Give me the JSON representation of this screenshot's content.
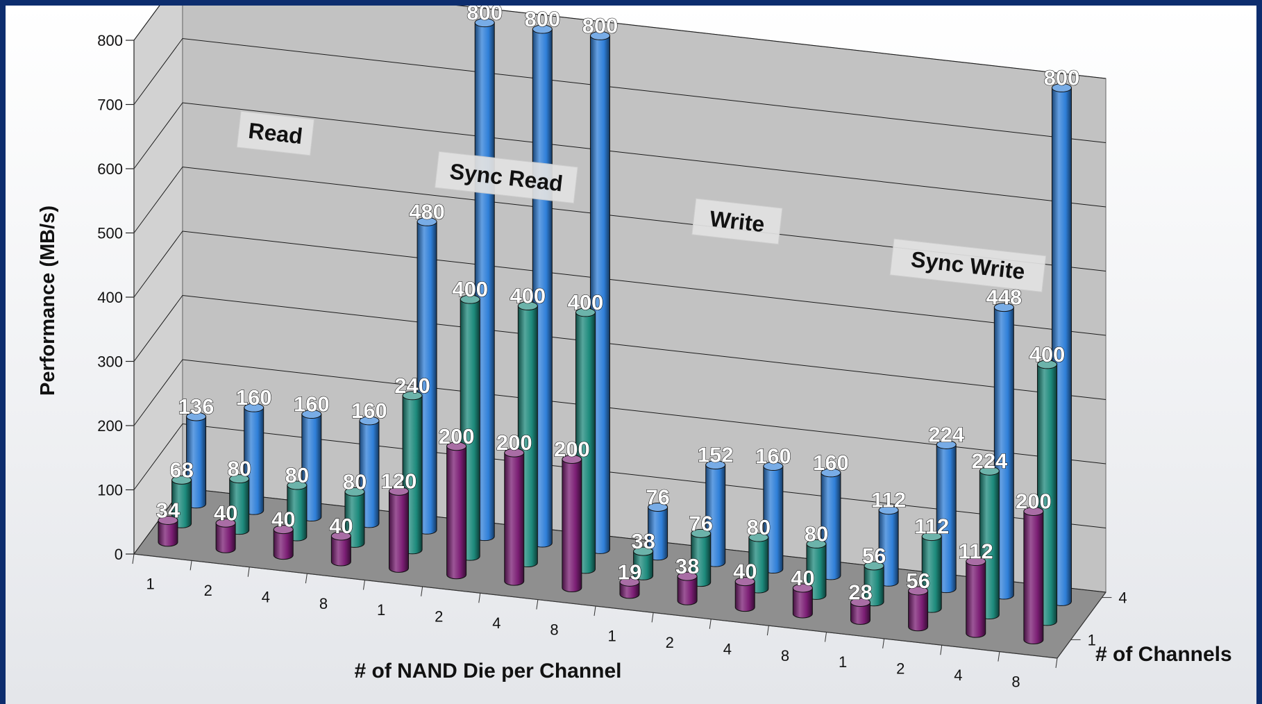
{
  "chart_data": {
    "type": "bar",
    "style": "3d-clustered-cylinders",
    "title": "",
    "xlabel": "# of NAND Die per Channel",
    "ylabel": "Performance (MB/s)",
    "zlabel": "# of Channels",
    "ylim": [
      0,
      800
    ],
    "yticks": [
      0,
      100,
      200,
      300,
      400,
      500,
      600,
      700,
      800
    ],
    "groups": [
      "Read",
      "Sync Read",
      "Write",
      "Sync Write"
    ],
    "categories": [
      "1",
      "2",
      "4",
      "8"
    ],
    "depth_ticks": [
      "1",
      "4"
    ],
    "series": [
      {
        "channels": "1",
        "color": "#7b1e74",
        "values": {
          "Read": [
            34,
            40,
            40,
            40
          ],
          "Sync Read": [
            120,
            200,
            200,
            200
          ],
          "Write": [
            19,
            38,
            40,
            40
          ],
          "Sync Write": [
            28,
            56,
            112,
            200
          ]
        }
      },
      {
        "channels": "2",
        "color": "#1d8a7c",
        "values": {
          "Read": [
            68,
            80,
            80,
            80
          ],
          "Sync Read": [
            240,
            400,
            400,
            400
          ],
          "Write": [
            38,
            76,
            80,
            80
          ],
          "Sync Write": [
            56,
            112,
            224,
            400
          ]
        }
      },
      {
        "channels": "4",
        "color": "#2f7fd8",
        "values": {
          "Read": [
            136,
            160,
            160,
            160
          ],
          "Sync Read": [
            480,
            800,
            800,
            800
          ],
          "Write": [
            76,
            152,
            160,
            160
          ],
          "Sync Write": [
            112,
            224,
            448,
            800
          ]
        }
      }
    ]
  }
}
